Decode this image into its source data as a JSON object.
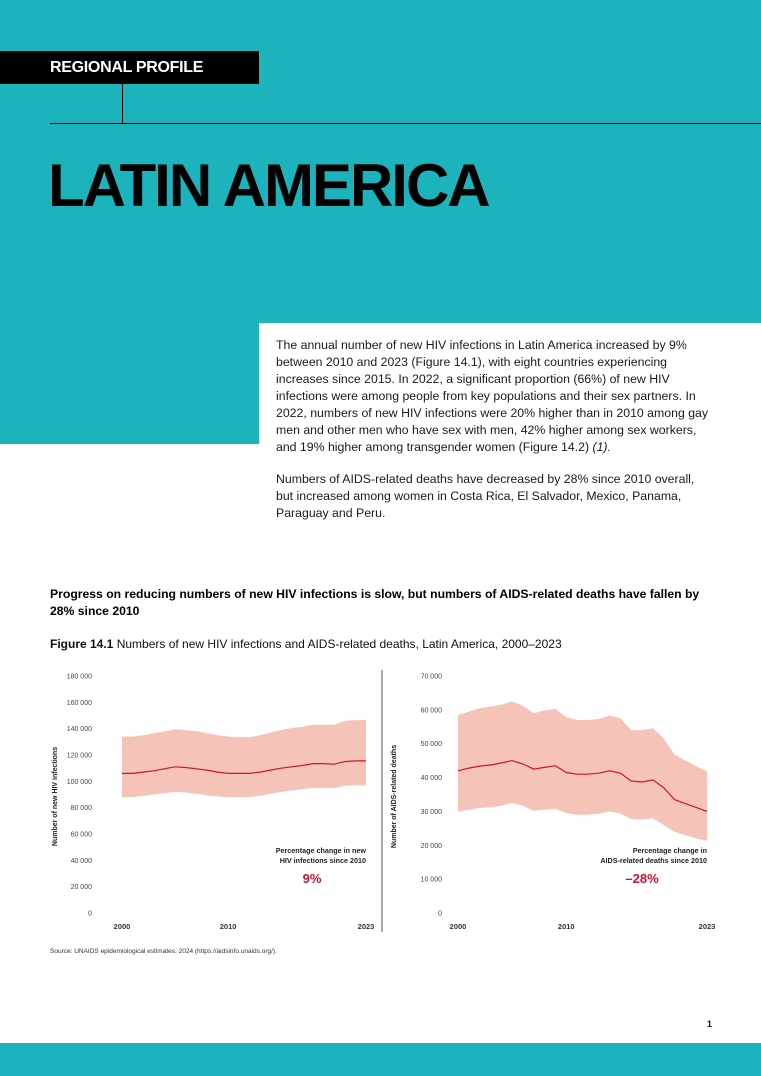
{
  "header": {
    "tag": "REGIONAL PROFILE",
    "title": "LATIN AMERICA"
  },
  "intro": {
    "p1": "The annual number of new HIV infections in Latin America increased by 9% between 2010 and 2023 (Figure 14.1), with eight countries experiencing increases since 2015. In 2022, a significant proportion (66%) of new HIV infections were among people from key populations and their sex partners. In 2022, numbers of new HIV infections were 20% higher than in 2010 among gay men and other men who have sex with men, 42% higher among sex workers, and 19% higher among transgender women (Figure 14.2)",
    "p1_ref": "(1).",
    "p2": "Numbers of AIDS-related deaths have decreased by 28% since 2010 overall, but increased among women in Costa Rica, El Salvador, Mexico, Panama, Paraguay and Peru."
  },
  "lead": "Progress on reducing numbers of new HIV infections is slow, but numbers of AIDS-related deaths have fallen by 28% since 2010",
  "figure": {
    "label": "Figure 14.1",
    "caption": "Numbers of new HIV infections and AIDS-related deaths, Latin America, 2000–2023"
  },
  "source": "Source: UNAIDS epidemiological estimates, 2024 (https://aidsinfo.unaids.org/).",
  "page_number": "1",
  "colors": {
    "teal": "#1db3bd",
    "band": "#f6c3b8",
    "line": "#cc1531"
  },
  "chart_data": [
    {
      "type": "area",
      "ylabel": "Number of new HIV infections",
      "ylim": [
        0,
        180000
      ],
      "yticks": [
        0,
        20000,
        40000,
        60000,
        80000,
        100000,
        120000,
        140000,
        160000,
        180000
      ],
      "ytick_labels": [
        "0",
        "20 000",
        "40 000",
        "60 000",
        "80 000",
        "100 000",
        "120 000",
        "140 000",
        "160 000",
        "180 000"
      ],
      "xticks": [
        2000,
        2010,
        2023
      ],
      "x": [
        2000,
        2001,
        2002,
        2003,
        2004,
        2005,
        2006,
        2007,
        2008,
        2009,
        2010,
        2011,
        2012,
        2013,
        2014,
        2015,
        2016,
        2017,
        2018,
        2019,
        2020,
        2021,
        2022,
        2023
      ],
      "estimate": [
        106000,
        106000,
        107000,
        108000,
        109500,
        111000,
        110500,
        109500,
        108500,
        107000,
        106000,
        106000,
        106000,
        107000,
        108500,
        110000,
        111000,
        112000,
        113500,
        113500,
        113000,
        115000,
        115500,
        115500
      ],
      "lower": [
        88000,
        88000,
        89000,
        90000,
        91000,
        92000,
        91500,
        90500,
        89500,
        88500,
        88000,
        88000,
        88000,
        89000,
        90500,
        92000,
        93000,
        94000,
        95000,
        95000,
        95000,
        96500,
        97000,
        97000
      ],
      "upper": [
        134000,
        134000,
        135000,
        136500,
        138000,
        139500,
        139000,
        138000,
        136500,
        135000,
        134000,
        133500,
        133500,
        135000,
        137000,
        139000,
        140500,
        141500,
        143000,
        143000,
        143000,
        146000,
        146500,
        146500
      ],
      "annotation": {
        "text_line1": "Percentage change in new",
        "text_line2": "HIV infections since 2010",
        "value": "9%"
      }
    },
    {
      "type": "area",
      "ylabel": "Number of AIDS-related deaths",
      "ylim": [
        0,
        70000
      ],
      "yticks": [
        0,
        10000,
        20000,
        30000,
        40000,
        50000,
        60000,
        70000
      ],
      "ytick_labels": [
        "0",
        "10 000",
        "20 000",
        "30 000",
        "40 000",
        "50 000",
        "60 000",
        "70 000"
      ],
      "xticks": [
        2000,
        2010,
        2023
      ],
      "x": [
        2000,
        2001,
        2002,
        2003,
        2004,
        2005,
        2006,
        2007,
        2008,
        2009,
        2010,
        2011,
        2012,
        2013,
        2014,
        2015,
        2016,
        2017,
        2018,
        2019,
        2020,
        2021,
        2022,
        2023
      ],
      "estimate": [
        42000,
        42800,
        43400,
        43700,
        44300,
        45000,
        44000,
        42500,
        43000,
        43500,
        41500,
        41000,
        41000,
        41300,
        42000,
        41300,
        39000,
        38700,
        39300,
        37000,
        33500,
        32300,
        31200,
        30000
      ],
      "lower": [
        30000,
        30500,
        31000,
        31200,
        31700,
        32500,
        31700,
        30200,
        30500,
        30800,
        29500,
        29000,
        29000,
        29300,
        30000,
        29400,
        27800,
        27600,
        28000,
        26000,
        24000,
        23000,
        22000,
        21300
      ],
      "upper": [
        58500,
        59500,
        60500,
        61000,
        61500,
        62500,
        61200,
        59000,
        59800,
        60300,
        57800,
        57000,
        57000,
        57300,
        58300,
        57500,
        54000,
        54000,
        54600,
        51500,
        46800,
        45000,
        43300,
        41800
      ],
      "annotation": {
        "text_line1": "Percentage change in",
        "text_line2": "AIDS-related deaths since 2010",
        "value": "–28%"
      }
    }
  ]
}
